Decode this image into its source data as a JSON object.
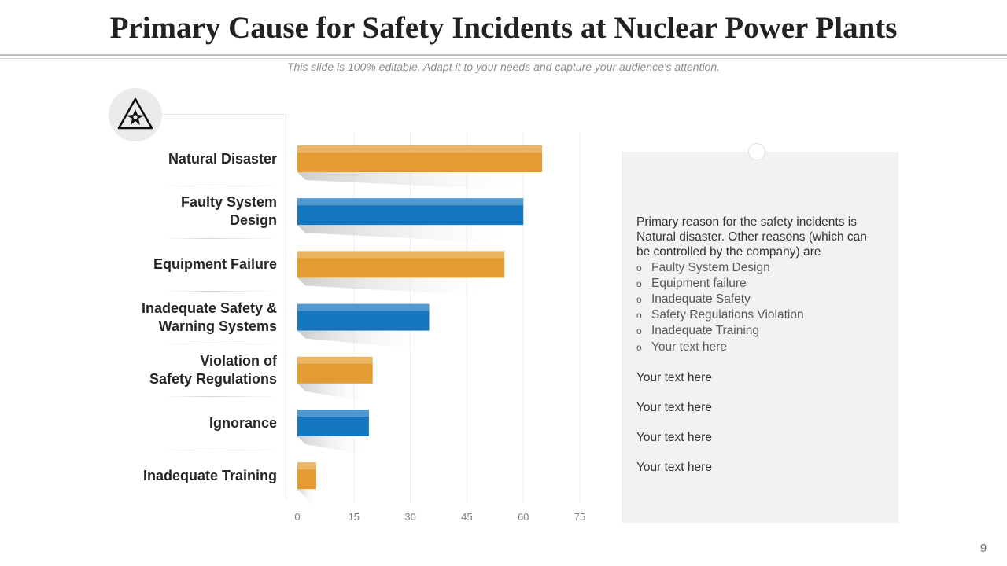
{
  "slide": {
    "title": "Primary Cause for Safety Incidents at Nuclear Power Plants",
    "subtitle": "This slide is 100% editable. Adapt it to your needs and capture your audience's attention.",
    "page_number": "9",
    "icon": "radiation-hazard-icon"
  },
  "chart_data": {
    "type": "bar",
    "orientation": "horizontal",
    "title": "",
    "categories": [
      "Natural Disaster",
      "Faulty System Design",
      "Equipment Failure",
      "Inadequate Safety & Warning Systems",
      "Violation of Safety Regulations",
      "Ignorance",
      "Inadequate Training"
    ],
    "category_label_lines": [
      [
        "Natural Disaster"
      ],
      [
        "Faulty System",
        "Design"
      ],
      [
        "Equipment Failure"
      ],
      [
        "Inadequate Safety &",
        "Warning Systems"
      ],
      [
        "Violation of",
        "Safety Regulations"
      ],
      [
        "Ignorance"
      ],
      [
        "Inadequate Training"
      ]
    ],
    "values": [
      65,
      60,
      55,
      35,
      20,
      19,
      5
    ],
    "bar_colors": [
      "#E39C31",
      "#1677BF",
      "#E39C31",
      "#1677BF",
      "#E39C31",
      "#1677BF",
      "#E39C31"
    ],
    "x_ticks": [
      0,
      15,
      30,
      45,
      60,
      75
    ],
    "xlim": [
      0,
      75
    ],
    "grid": true,
    "xlabel": "",
    "ylabel": "",
    "legend": "none"
  },
  "panel": {
    "intro": "Primary reason for the safety incidents is Natural disaster. Other reasons (which can be controlled by the company) are",
    "bullet_symbol": "o",
    "bullets": [
      "Faulty System Design",
      "Equipment failure",
      "Inadequate Safety",
      "Safety Regulations Violation",
      "Inadequate Training",
      "Your text here"
    ],
    "extra_lines": [
      "Your text here",
      "Your text here",
      "Your text here",
      "Your text here"
    ]
  },
  "colors": {
    "orange": "#E39C31",
    "blue": "#1677BF",
    "panel_bg": "#F2F2F2"
  }
}
